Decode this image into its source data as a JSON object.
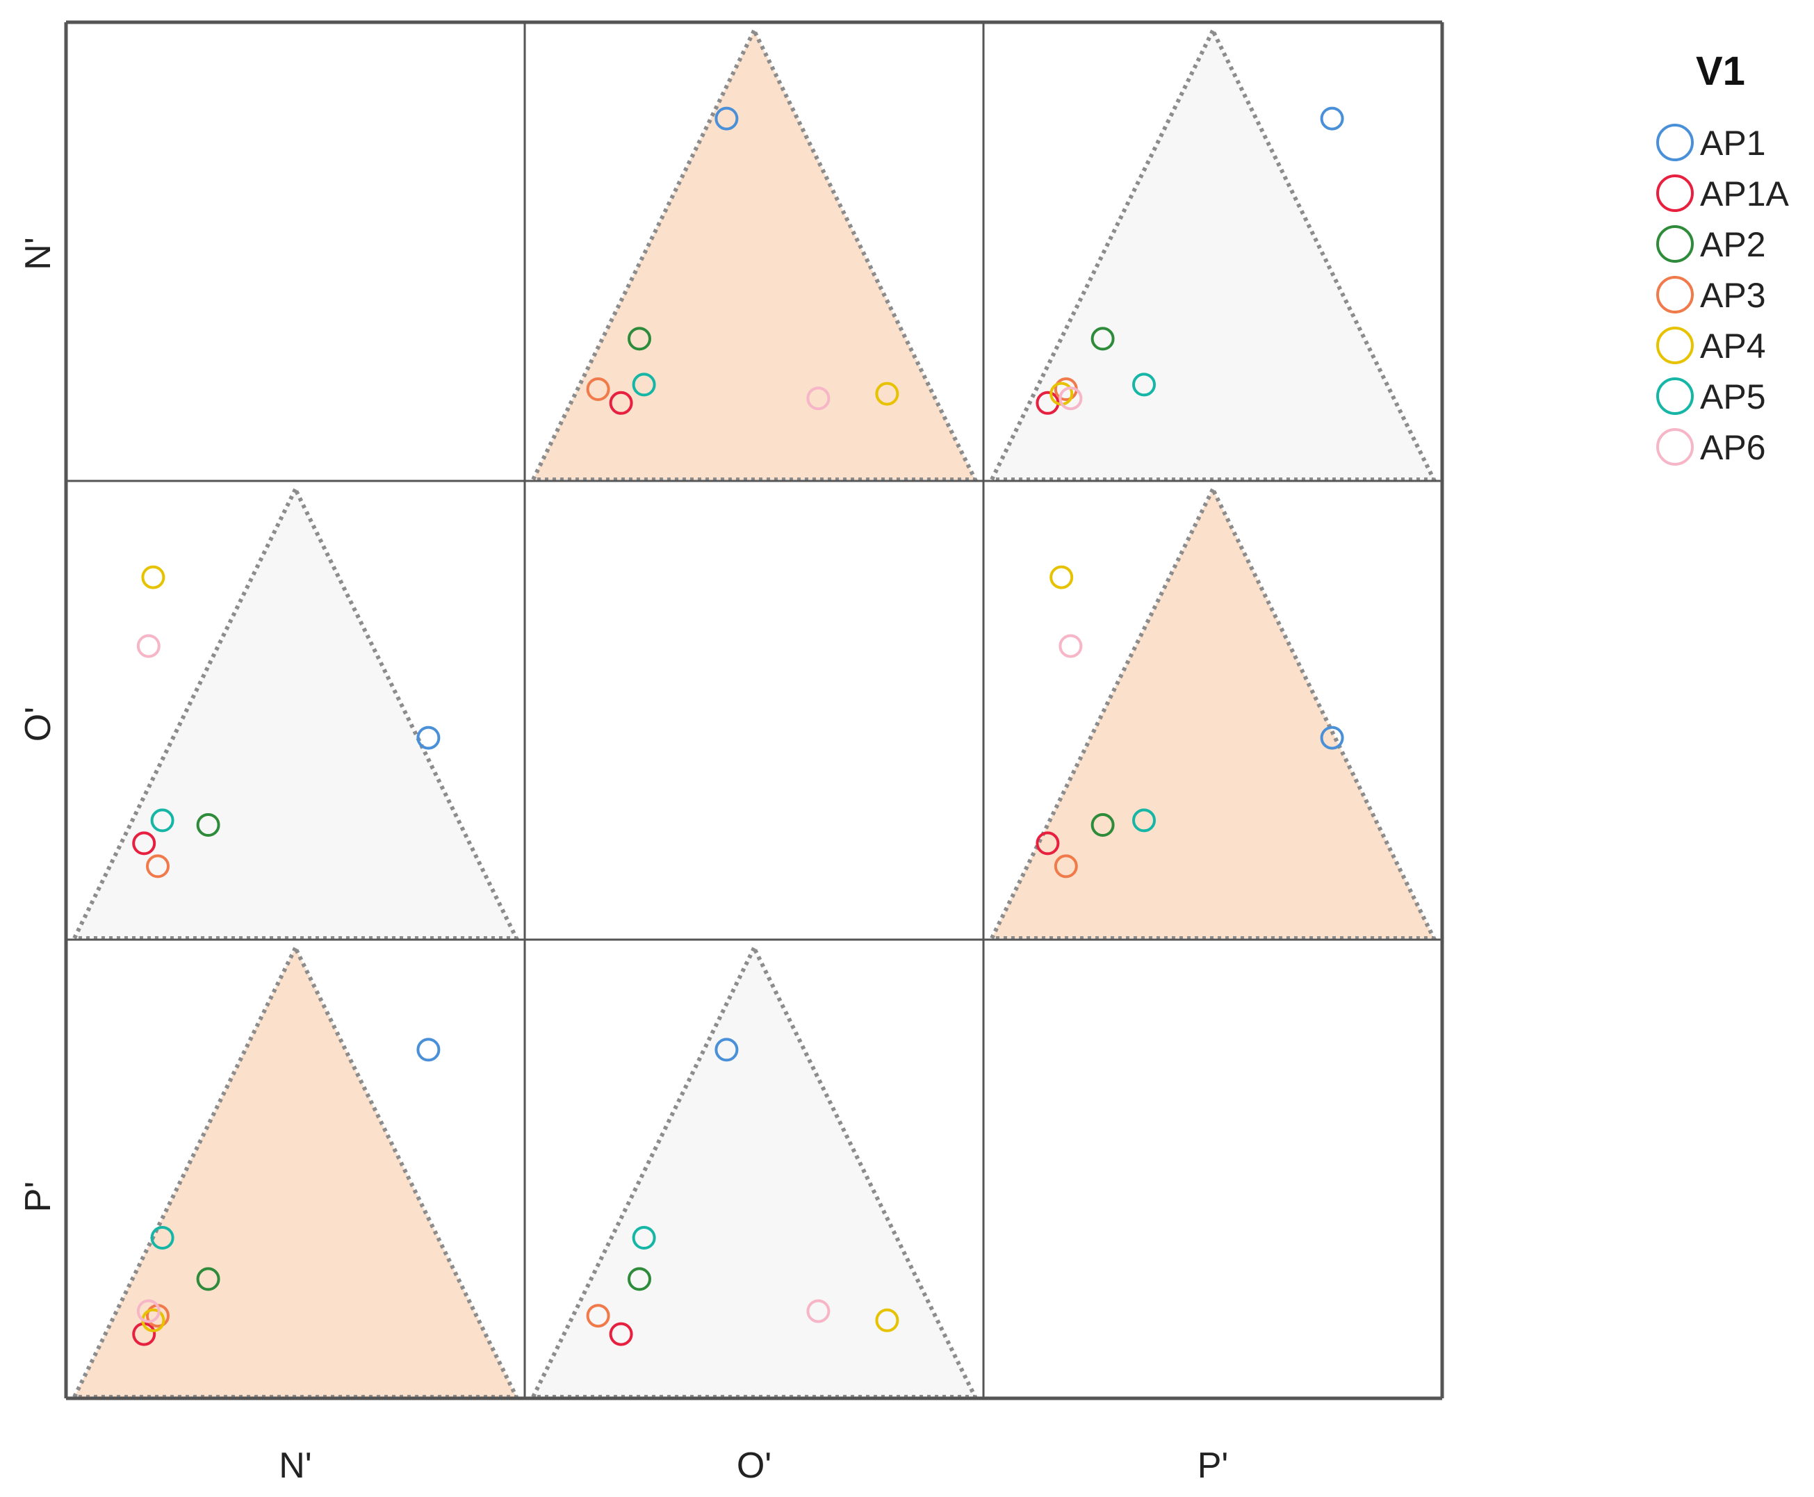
{
  "chart_data": {
    "type": "scatter",
    "layout": "3x3 scatterplot matrix with ternary triangle regions",
    "variables": [
      "N'",
      "O'",
      "P'"
    ],
    "row_labels": [
      "N'",
      "O'",
      "P'"
    ],
    "column_labels": [
      "N'",
      "O'",
      "P'"
    ],
    "diagonal": "empty",
    "region_colors": {
      "highlight": "#fbe0cc",
      "neutral": "#f7f7f7",
      "boundary": "#8c8c8c"
    },
    "cells": [
      {
        "row": 0,
        "col": 1,
        "highlight": true
      },
      {
        "row": 0,
        "col": 2,
        "highlight": false
      },
      {
        "row": 1,
        "col": 0,
        "highlight": false
      },
      {
        "row": 1,
        "col": 2,
        "highlight": true
      },
      {
        "row": 2,
        "col": 0,
        "highlight": true
      },
      {
        "row": 2,
        "col": 1,
        "highlight": false
      }
    ],
    "legend": {
      "title": "V1",
      "placement": "top-right"
    },
    "series": [
      {
        "name": "AP1",
        "color": "#4a90d9",
        "values": {
          "N'": 0.79,
          "O'": 0.44,
          "P'": 0.76
        }
      },
      {
        "name": "AP1A",
        "color": "#e8203f",
        "values": {
          "N'": 0.17,
          "O'": 0.21,
          "P'": 0.14
        }
      },
      {
        "name": "AP2",
        "color": "#2e8b3a",
        "values": {
          "N'": 0.31,
          "O'": 0.25,
          "P'": 0.26
        }
      },
      {
        "name": "AP3",
        "color": "#f07a4a",
        "values": {
          "N'": 0.2,
          "O'": 0.16,
          "P'": 0.18
        }
      },
      {
        "name": "AP4",
        "color": "#e6c200",
        "values": {
          "N'": 0.19,
          "O'": 0.79,
          "P'": 0.17
        }
      },
      {
        "name": "AP5",
        "color": "#16b6a6",
        "values": {
          "N'": 0.21,
          "O'": 0.26,
          "P'": 0.35
        }
      },
      {
        "name": "AP6",
        "color": "#f6b6c8",
        "values": {
          "N'": 0.18,
          "O'": 0.64,
          "P'": 0.19
        }
      }
    ]
  }
}
